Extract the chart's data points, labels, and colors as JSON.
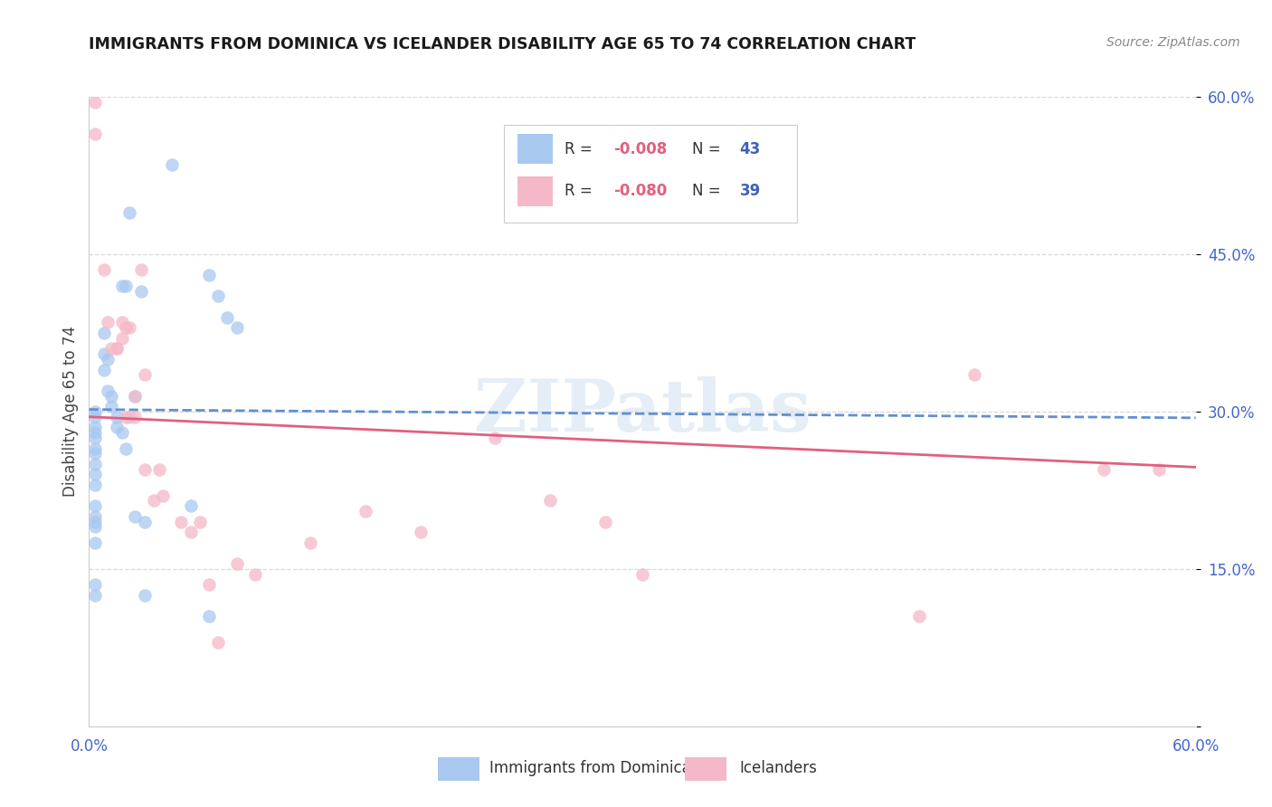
{
  "title": "IMMIGRANTS FROM DOMINICA VS ICELANDER DISABILITY AGE 65 TO 74 CORRELATION CHART",
  "source": "Source: ZipAtlas.com",
  "ylabel": "Disability Age 65 to 74",
  "xmin": 0.0,
  "xmax": 0.6,
  "ymin": 0.0,
  "ymax": 0.6,
  "xticks": [
    0.0,
    0.1,
    0.2,
    0.3,
    0.4,
    0.5,
    0.6
  ],
  "xtick_labels": [
    "0.0%",
    "",
    "",
    "",
    "",
    "",
    "60.0%"
  ],
  "yticks": [
    0.0,
    0.15,
    0.3,
    0.45,
    0.6
  ],
  "ytick_labels": [
    "",
    "15.0%",
    "30.0%",
    "45.0%",
    "60.0%"
  ],
  "legend_r1": "R = ",
  "legend_v1": "-0.008",
  "legend_n1_label": "N = ",
  "legend_n1_val": "43",
  "legend_r2": "R = ",
  "legend_v2": "-0.080",
  "legend_n2_label": "N = ",
  "legend_n2_val": "39",
  "legend_label1": "Immigrants from Dominica",
  "legend_label2": "Icelanders",
  "blue_color": "#a8c8f0",
  "pink_color": "#f5b8c8",
  "blue_line_color": "#6090d0",
  "pink_line_color": "#e06080",
  "r_color": "#e06080",
  "n_color": "#4060c0",
  "grid_color": "#d8d8d8",
  "watermark_color": "#d0dff0",
  "watermark": "ZIPatlas",
  "blue_scatter_x": [
    0.003,
    0.003,
    0.003,
    0.003,
    0.003,
    0.003,
    0.003,
    0.003,
    0.003,
    0.003,
    0.003,
    0.003,
    0.003,
    0.003,
    0.003,
    0.003,
    0.003,
    0.008,
    0.008,
    0.008,
    0.01,
    0.01,
    0.012,
    0.012,
    0.015,
    0.015,
    0.018,
    0.018,
    0.02,
    0.02,
    0.022,
    0.025,
    0.025,
    0.028,
    0.03,
    0.03,
    0.045,
    0.055,
    0.065,
    0.065,
    0.07,
    0.075,
    0.08
  ],
  "blue_scatter_y": [
    0.3,
    0.295,
    0.285,
    0.28,
    0.275,
    0.265,
    0.26,
    0.25,
    0.24,
    0.23,
    0.21,
    0.2,
    0.195,
    0.19,
    0.175,
    0.135,
    0.125,
    0.375,
    0.355,
    0.34,
    0.35,
    0.32,
    0.315,
    0.305,
    0.295,
    0.285,
    0.42,
    0.28,
    0.42,
    0.265,
    0.49,
    0.315,
    0.2,
    0.415,
    0.195,
    0.125,
    0.535,
    0.21,
    0.105,
    0.43,
    0.41,
    0.39,
    0.38
  ],
  "pink_scatter_x": [
    0.003,
    0.003,
    0.008,
    0.01,
    0.012,
    0.015,
    0.015,
    0.018,
    0.018,
    0.02,
    0.02,
    0.022,
    0.022,
    0.025,
    0.025,
    0.028,
    0.03,
    0.03,
    0.035,
    0.038,
    0.04,
    0.05,
    0.055,
    0.06,
    0.065,
    0.07,
    0.08,
    0.09,
    0.12,
    0.15,
    0.18,
    0.22,
    0.25,
    0.28,
    0.3,
    0.45,
    0.48,
    0.55,
    0.58
  ],
  "pink_scatter_y": [
    0.595,
    0.565,
    0.435,
    0.385,
    0.36,
    0.36,
    0.36,
    0.385,
    0.37,
    0.38,
    0.295,
    0.38,
    0.295,
    0.315,
    0.295,
    0.435,
    0.335,
    0.245,
    0.215,
    0.245,
    0.22,
    0.195,
    0.185,
    0.195,
    0.135,
    0.08,
    0.155,
    0.145,
    0.175,
    0.205,
    0.185,
    0.275,
    0.215,
    0.195,
    0.145,
    0.105,
    0.335,
    0.245,
    0.245
  ],
  "blue_trend_x": [
    0.0,
    0.6
  ],
  "blue_trend_y": [
    0.302,
    0.294
  ],
  "pink_trend_x": [
    0.0,
    0.6
  ],
  "pink_trend_y": [
    0.295,
    0.247
  ]
}
